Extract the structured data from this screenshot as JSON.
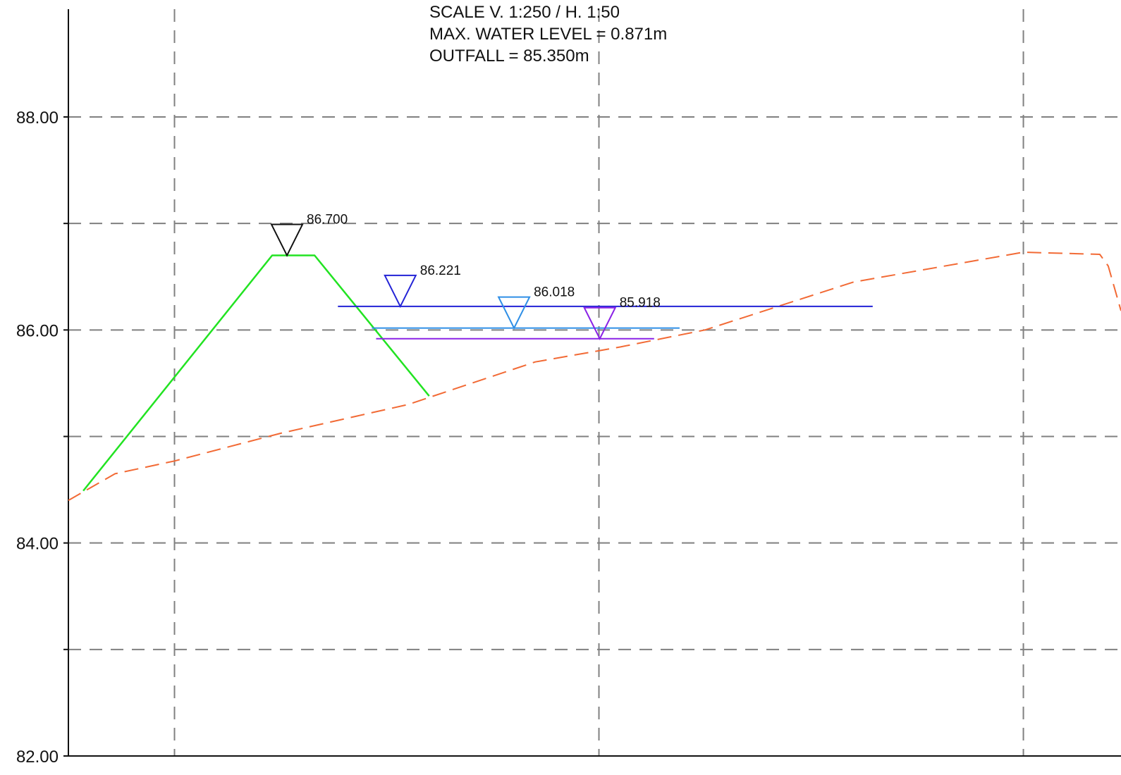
{
  "header": {
    "lines": [
      "SCALE V. 1:250 / H. 1:50",
      "MAX. WATER LEVEL = 0.871m",
      "OUTFALL = 85.350m"
    ]
  },
  "chart_data": {
    "type": "line",
    "title": "",
    "xlabel": "",
    "ylabel": "",
    "ylim": [
      82.0,
      89.0
    ],
    "xlim": [
      0,
      24.8
    ],
    "y_tick_labels": [
      {
        "value": 88.0,
        "label": "88.00"
      },
      {
        "value": 86.0,
        "label": "86.00"
      },
      {
        "value": 84.0,
        "label": "84.00"
      },
      {
        "value": 82.0,
        "label": "82.00"
      }
    ],
    "y_minor_ticks": [
      87.0,
      85.0,
      83.0
    ],
    "x_gridlines": [
      2.5,
      12.5,
      22.5
    ],
    "grid": true,
    "colors": {
      "embankment": "#22e322",
      "ground": "#f26a35",
      "level_black": "#111111",
      "level_blue": "#2323d6",
      "level_lightblue": "#2f8fe6",
      "level_purple": "#8a22e6",
      "grid": "#808080",
      "axis": "#111111"
    },
    "series": [
      {
        "key": "embankment",
        "style": "solid",
        "color": "#22e322",
        "points": [
          [
            0.35,
            84.49
          ],
          [
            4.8,
            86.7
          ],
          [
            5.8,
            86.7
          ],
          [
            8.5,
            85.38
          ]
        ]
      },
      {
        "key": "ground",
        "style": "dashed",
        "color": "#f26a35",
        "points": [
          [
            0.0,
            84.4
          ],
          [
            1.1,
            84.65
          ],
          [
            2.5,
            84.77
          ],
          [
            5.0,
            85.03
          ],
          [
            8.0,
            85.3
          ],
          [
            11.0,
            85.7
          ],
          [
            13.0,
            85.84
          ],
          [
            15.0,
            86.0
          ],
          [
            18.5,
            86.45
          ],
          [
            22.5,
            86.73
          ],
          [
            24.3,
            86.71
          ],
          [
            24.5,
            86.6
          ],
          [
            24.8,
            86.18
          ]
        ]
      }
    ],
    "water_levels": [
      {
        "label": "86.700",
        "level": 86.7,
        "marker_x": 5.15,
        "color": "#111111",
        "line_x": null
      },
      {
        "label": "86.221",
        "level": 86.221,
        "marker_x": 7.82,
        "color": "#2323d6",
        "line_x": [
          6.35,
          18.95
        ]
      },
      {
        "label": "86.018",
        "level": 86.018,
        "marker_x": 10.5,
        "color": "#2f8fe6",
        "line_x": [
          7.15,
          14.4
        ]
      },
      {
        "label": "85.918",
        "level": 85.918,
        "marker_x": 12.52,
        "color": "#8a22e6",
        "line_x": [
          7.25,
          13.8
        ]
      }
    ]
  }
}
